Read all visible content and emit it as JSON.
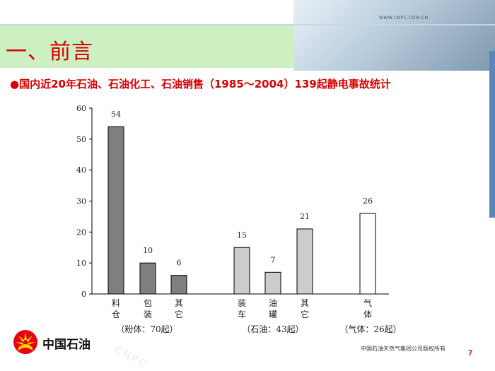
{
  "header": {
    "site_url": "WWW.CNPC.COM.CN",
    "title": "一、前言",
    "subtitle": "●国内近20年石油、石油化工、石油销售（1985～2004）139起静电事故统计"
  },
  "footer": {
    "logo_text": "中国石油",
    "watermark": "CNPC",
    "copyright": "中国石油天然气集团公司版权所有",
    "page_number": "7"
  },
  "colors": {
    "title_red": "#d60000",
    "title_bg": "#ccf0c2",
    "bar_dark": "#7f7f7f",
    "bar_light": "#cccccc",
    "accent_blue": "#5b87b8"
  },
  "chart_data": {
    "type": "bar",
    "ylim": [
      0,
      60
    ],
    "yticks": [
      0,
      10,
      20,
      30,
      40,
      50,
      60
    ],
    "grid": false,
    "groups": [
      {
        "label": "（粉体：70起）",
        "bars": [
          {
            "category": [
              "料",
              "仓"
            ],
            "value": 54,
            "shade": "dark"
          },
          {
            "category": [
              "包",
              "装"
            ],
            "value": 10,
            "shade": "dark"
          },
          {
            "category": [
              "其",
              "它"
            ],
            "value": 6,
            "shade": "dark"
          }
        ]
      },
      {
        "label": "（石油：43起）",
        "bars": [
          {
            "category": [
              "装",
              "车"
            ],
            "value": 15,
            "shade": "light"
          },
          {
            "category": [
              "油",
              "罐"
            ],
            "value": 7,
            "shade": "light"
          },
          {
            "category": [
              "其",
              "它"
            ],
            "value": 21,
            "shade": "light"
          }
        ]
      },
      {
        "label": "（气体：26起）",
        "bars": [
          {
            "category": [
              "气",
              "体"
            ],
            "value": 26,
            "shade": "white"
          }
        ]
      }
    ]
  }
}
